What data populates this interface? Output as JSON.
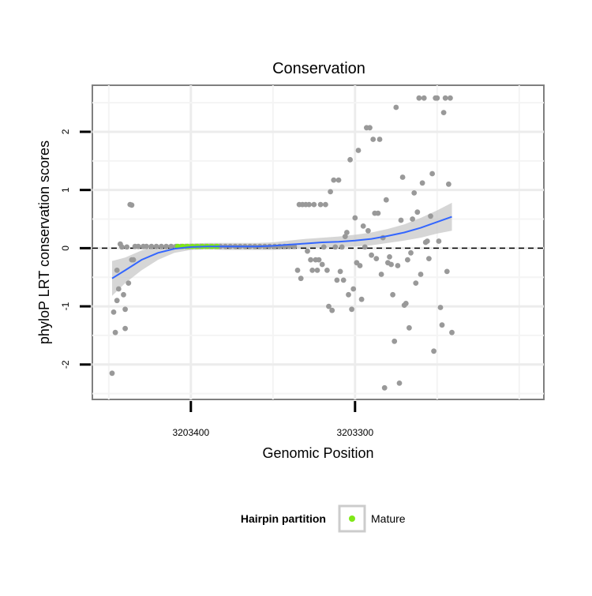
{
  "chart_data": {
    "type": "scatter",
    "title": "Conservation",
    "xlabel": "Genomic Position",
    "ylabel": "phyloP LRT conservation scores",
    "x_reversed": true,
    "xlim": [
      3203460,
      3203185
    ],
    "ylim": [
      -2.6,
      2.8
    ],
    "x_ticks": [
      3203400,
      3203300
    ],
    "x_tick_labels": [
      "3203400",
      "3203300"
    ],
    "y_ticks": [
      -2,
      -1,
      0,
      1,
      2
    ],
    "y_tick_labels": [
      "-2",
      "-1",
      "0",
      "1",
      "2"
    ],
    "grid": true,
    "reference_line": {
      "y": 0,
      "style": "dashed",
      "color": "#000000"
    },
    "legend": {
      "title": "Hairpin partition",
      "position": "bottom",
      "entries": [
        {
          "label": "Mature",
          "color": "#7FE817"
        }
      ]
    },
    "series": [
      {
        "role": "points",
        "color": "#999999",
        "points": [
          [
            3203448,
            -2.15
          ],
          [
            3203447,
            -1.1
          ],
          [
            3203446,
            -1.45
          ],
          [
            3203445,
            -0.9
          ],
          [
            3203445,
            -0.38
          ],
          [
            3203444,
            -0.7
          ],
          [
            3203443,
            0.07
          ],
          [
            3203442,
            0.02
          ],
          [
            3203441,
            -0.8
          ],
          [
            3203440,
            -1.38
          ],
          [
            3203440,
            -1.05
          ],
          [
            3203439,
            0.02
          ],
          [
            3203438,
            -0.6
          ],
          [
            3203437,
            0.75
          ],
          [
            3203436,
            0.74
          ],
          [
            3203436,
            -0.2
          ],
          [
            3203435,
            -0.2
          ],
          [
            3203434,
            0.03
          ],
          [
            3203432,
            0.03
          ],
          [
            3203429,
            0.03
          ],
          [
            3203427,
            0.03
          ],
          [
            3203424,
            0.03
          ],
          [
            3203421,
            0.03
          ],
          [
            3203418,
            0.03
          ],
          [
            3203415,
            0.03
          ],
          [
            3203412,
            0.03
          ],
          [
            3203409,
            0.03
          ],
          [
            3203406,
            0.03
          ],
          [
            3203403,
            0.03
          ],
          [
            3203400,
            0.03
          ],
          [
            3203397,
            0.03
          ],
          [
            3203394,
            0.03
          ],
          [
            3203391,
            0.03
          ],
          [
            3203388,
            0.03
          ],
          [
            3203385,
            0.03
          ],
          [
            3203382,
            0.03
          ],
          [
            3203379,
            0.03
          ],
          [
            3203376,
            0.03
          ],
          [
            3203373,
            0.03
          ],
          [
            3203370,
            0.03
          ],
          [
            3203367,
            0.03
          ],
          [
            3203364,
            0.03
          ],
          [
            3203361,
            0.03
          ],
          [
            3203358,
            0.03
          ],
          [
            3203355,
            0.03
          ],
          [
            3203352,
            0.03
          ],
          [
            3203349,
            0.03
          ],
          [
            3203346,
            0.03
          ],
          [
            3203343,
            0.03
          ],
          [
            3203340,
            0.03
          ],
          [
            3203337,
            0.03
          ],
          [
            3203335,
            -0.38
          ],
          [
            3203334,
            0.75
          ],
          [
            3203333,
            -0.52
          ],
          [
            3203332,
            0.75
          ],
          [
            3203330,
            0.75
          ],
          [
            3203329,
            -0.05
          ],
          [
            3203328,
            0.75
          ],
          [
            3203327,
            -0.2
          ],
          [
            3203326,
            -0.38
          ],
          [
            3203325,
            0.75
          ],
          [
            3203324,
            -0.2
          ],
          [
            3203323,
            -0.38
          ],
          [
            3203322,
            -0.2
          ],
          [
            3203321,
            0.75
          ],
          [
            3203320,
            -0.28
          ],
          [
            3203319,
            0.02
          ],
          [
            3203318,
            0.75
          ],
          [
            3203317,
            -0.38
          ],
          [
            3203316,
            -1.0
          ],
          [
            3203315,
            0.97
          ],
          [
            3203314,
            -1.07
          ],
          [
            3203313,
            1.17
          ],
          [
            3203312,
            0.02
          ],
          [
            3203311,
            -0.55
          ],
          [
            3203310,
            1.17
          ],
          [
            3203309,
            -0.4
          ],
          [
            3203308,
            0.02
          ],
          [
            3203307,
            -0.55
          ],
          [
            3203306,
            0.2
          ],
          [
            3203305,
            0.27
          ],
          [
            3203304,
            -0.8
          ],
          [
            3203303,
            1.52
          ],
          [
            3203302,
            -1.05
          ],
          [
            3203301,
            -0.7
          ],
          [
            3203300,
            0.52
          ],
          [
            3203299,
            -0.25
          ],
          [
            3203298,
            1.68
          ],
          [
            3203297,
            -0.3
          ],
          [
            3203296,
            -0.88
          ],
          [
            3203295,
            0.38
          ],
          [
            3203294,
            0.02
          ],
          [
            3203293,
            2.07
          ],
          [
            3203292,
            0.3
          ],
          [
            3203291,
            2.07
          ],
          [
            3203290,
            -0.12
          ],
          [
            3203289,
            1.87
          ],
          [
            3203288,
            0.6
          ],
          [
            3203287,
            -0.18
          ],
          [
            3203286,
            0.6
          ],
          [
            3203285,
            1.87
          ],
          [
            3203284,
            -0.45
          ],
          [
            3203283,
            0.18
          ],
          [
            3203282,
            -2.4
          ],
          [
            3203281,
            0.83
          ],
          [
            3203280,
            -0.25
          ],
          [
            3203279,
            -0.15
          ],
          [
            3203278,
            -0.28
          ],
          [
            3203277,
            -0.8
          ],
          [
            3203276,
            -1.6
          ],
          [
            3203275,
            2.42
          ],
          [
            3203274,
            -0.3
          ],
          [
            3203273,
            -2.32
          ],
          [
            3203272,
            0.48
          ],
          [
            3203271,
            1.22
          ],
          [
            3203270,
            -0.98
          ],
          [
            3203269,
            -0.95
          ],
          [
            3203268,
            -0.2
          ],
          [
            3203267,
            -1.37
          ],
          [
            3203266,
            -0.08
          ],
          [
            3203265,
            0.5
          ],
          [
            3203264,
            0.95
          ],
          [
            3203263,
            -0.6
          ],
          [
            3203262,
            0.62
          ],
          [
            3203261,
            2.58
          ],
          [
            3203260,
            -0.45
          ],
          [
            3203259,
            1.12
          ],
          [
            3203258,
            2.58
          ],
          [
            3203257,
            0.1
          ],
          [
            3203256,
            0.12
          ],
          [
            3203255,
            -0.18
          ],
          [
            3203254,
            0.55
          ],
          [
            3203253,
            1.28
          ],
          [
            3203252,
            -1.77
          ],
          [
            3203251,
            2.58
          ],
          [
            3203250,
            2.58
          ],
          [
            3203249,
            0.12
          ],
          [
            3203248,
            -1.02
          ],
          [
            3203247,
            -1.32
          ],
          [
            3203246,
            2.33
          ],
          [
            3203245,
            2.58
          ],
          [
            3203244,
            -0.4
          ],
          [
            3203243,
            1.1
          ],
          [
            3203242,
            2.58
          ],
          [
            3203241,
            -1.45
          ]
        ]
      },
      {
        "role": "points",
        "name": "Mature",
        "color": "#7FE817",
        "points": [
          [
            3203408,
            0.03
          ],
          [
            3203405,
            0.03
          ],
          [
            3203402,
            0.03
          ],
          [
            3203399,
            0.03
          ],
          [
            3203396,
            0.03
          ],
          [
            3203393,
            0.03
          ],
          [
            3203390,
            0.03
          ],
          [
            3203387,
            0.03
          ],
          [
            3203384,
            0.03
          ]
        ]
      },
      {
        "role": "smooth",
        "color": "#3366FF",
        "band_color": "#C8C8C8",
        "x": [
          3203448,
          3203440,
          3203430,
          3203420,
          3203410,
          3203400,
          3203390,
          3203380,
          3203370,
          3203360,
          3203350,
          3203340,
          3203330,
          3203320,
          3203310,
          3203300,
          3203290,
          3203280,
          3203270,
          3203260,
          3203250,
          3203241
        ],
        "y": [
          -0.52,
          -0.38,
          -0.2,
          -0.08,
          -0.01,
          0.02,
          0.03,
          0.03,
          0.03,
          0.03,
          0.04,
          0.06,
          0.08,
          0.1,
          0.11,
          0.13,
          0.16,
          0.21,
          0.27,
          0.35,
          0.45,
          0.54
        ],
        "lower": [
          -0.82,
          -0.6,
          -0.38,
          -0.2,
          -0.08,
          -0.03,
          -0.02,
          -0.03,
          -0.03,
          -0.03,
          -0.03,
          -0.02,
          0.0,
          0.01,
          0.02,
          0.03,
          0.05,
          0.09,
          0.13,
          0.18,
          0.25,
          0.3
        ],
        "upper": [
          -0.22,
          -0.16,
          -0.04,
          0.04,
          0.07,
          0.08,
          0.09,
          0.09,
          0.09,
          0.09,
          0.1,
          0.13,
          0.16,
          0.18,
          0.2,
          0.23,
          0.27,
          0.33,
          0.41,
          0.52,
          0.65,
          0.78
        ]
      }
    ]
  }
}
